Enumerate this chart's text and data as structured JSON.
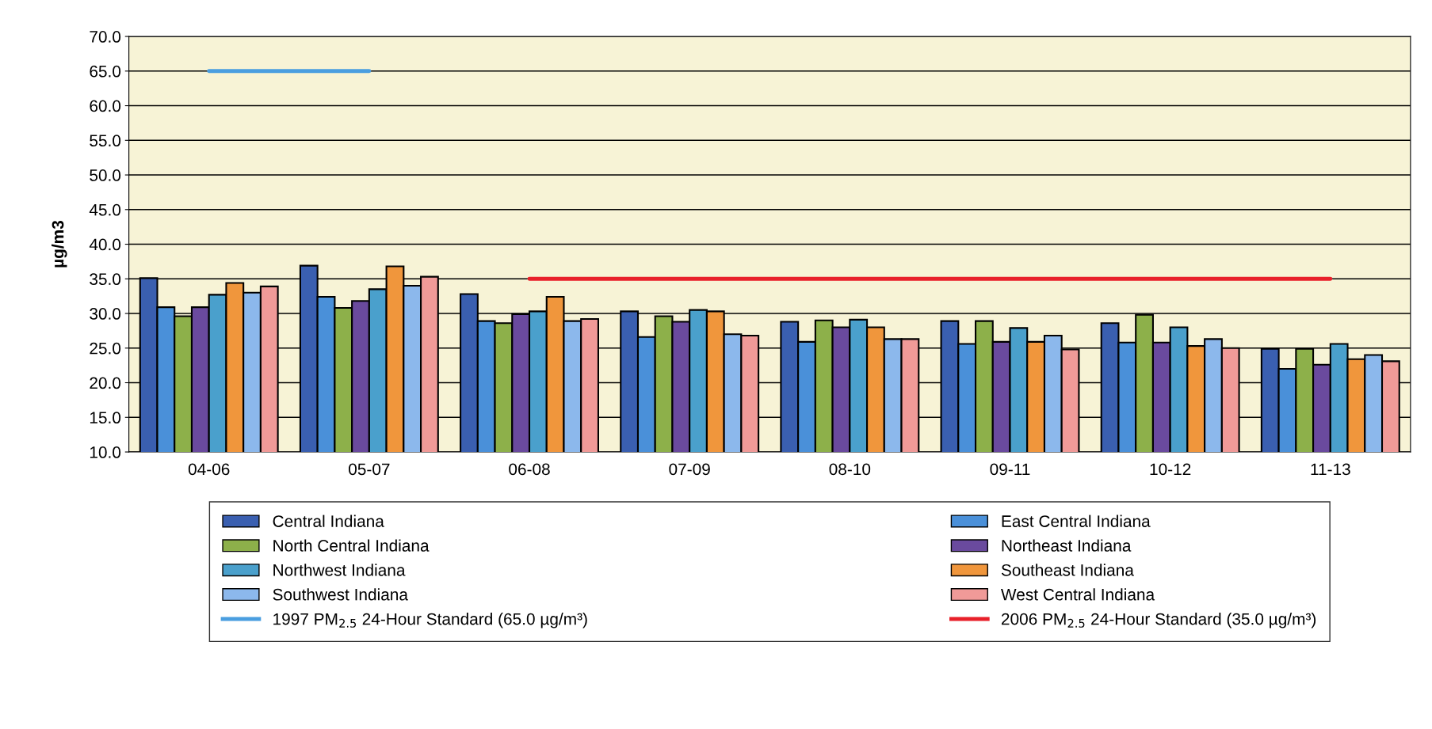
{
  "chart_data": {
    "type": "bar",
    "ylabel": "µg/m3",
    "categories": [
      "04-06",
      "05-07",
      "06-08",
      "07-09",
      "08-10",
      "09-11",
      "10-12",
      "11-13"
    ],
    "ylim": [
      10,
      70
    ],
    "yticks": [
      {
        "value": 10,
        "label": "10.0"
      },
      {
        "value": 15,
        "label": "15.0"
      },
      {
        "value": 20,
        "label": "20.0"
      },
      {
        "value": 25,
        "label": "25.0"
      },
      {
        "value": 30,
        "label": "30.0"
      },
      {
        "value": 35,
        "label": "35.0"
      },
      {
        "value": 40,
        "label": "40.0"
      },
      {
        "value": 45,
        "label": "45.0"
      },
      {
        "value": 50,
        "label": "50.0"
      },
      {
        "value": 55,
        "label": "55.0"
      },
      {
        "value": 60,
        "label": "60.0"
      },
      {
        "value": 65,
        "label": "65.0"
      },
      {
        "value": 70,
        "label": "70.0"
      }
    ],
    "grid": "y",
    "legend": "bottom",
    "series": [
      {
        "name": "Central Indiana",
        "color": "#3a5fb0",
        "values": [
          35.1,
          36.9,
          32.8,
          30.3,
          28.8,
          28.9,
          28.6,
          24.9
        ]
      },
      {
        "name": "East Central Indiana",
        "color": "#4a90d9",
        "values": [
          30.9,
          32.4,
          28.9,
          26.6,
          25.9,
          25.6,
          25.8,
          22.0
        ]
      },
      {
        "name": "North Central Indiana",
        "color": "#8db04a",
        "values": [
          29.6,
          30.8,
          28.6,
          29.6,
          29.0,
          28.9,
          29.8,
          24.9
        ]
      },
      {
        "name": "Northeast Indiana",
        "color": "#6a4a9e",
        "values": [
          30.9,
          31.8,
          29.9,
          28.8,
          28.0,
          25.9,
          25.8,
          22.6
        ]
      },
      {
        "name": "Northwest Indiana",
        "color": "#4aa0cc",
        "values": [
          32.7,
          33.5,
          30.3,
          30.5,
          29.1,
          27.9,
          28.0,
          25.6
        ]
      },
      {
        "name": "Southeast Indiana",
        "color": "#f0963c",
        "values": [
          34.4,
          36.8,
          32.4,
          30.3,
          28.0,
          25.9,
          25.3,
          23.4
        ]
      },
      {
        "name": "Southwest Indiana",
        "color": "#8cb8ec",
        "values": [
          33.0,
          34.0,
          28.9,
          27.0,
          26.3,
          26.8,
          26.3,
          24.0
        ]
      },
      {
        "name": "West Central Indiana",
        "color": "#f09a98",
        "values": [
          33.9,
          35.3,
          29.2,
          26.8,
          26.3,
          24.8,
          25.0,
          23.1
        ]
      },
      {
        "name": "1997 PM$_{2.5}$ 24-Hour Standard (65.0 µg/m³)",
        "type": "line",
        "color": "#4a9ee0",
        "values": [
          65,
          65,
          null,
          null,
          null,
          null,
          null,
          null
        ]
      },
      {
        "name": "2006 PM$_{2.5}$ 24-Hour Standard (35.0 µg/m³)",
        "type": "line",
        "color": "#e8202a",
        "values": [
          null,
          null,
          35,
          35,
          35,
          35,
          35,
          35
        ]
      }
    ]
  }
}
